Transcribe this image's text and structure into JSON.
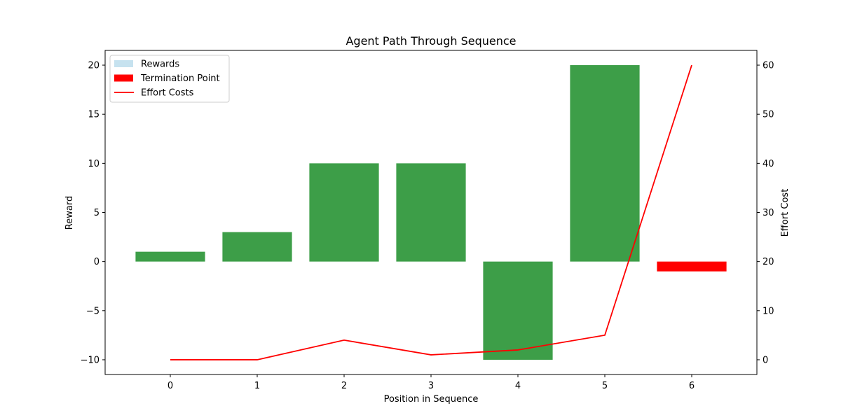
{
  "chart_data": {
    "type": "bar",
    "title": "Agent Path Through Sequence",
    "xlabel": "Position in Sequence",
    "ylabel": "Reward",
    "y2label": "Effort Cost",
    "x": [
      0,
      1,
      2,
      3,
      4,
      5,
      6
    ],
    "rewards": [
      1,
      3,
      10,
      10,
      -10,
      20,
      -1
    ],
    "bar_colors": [
      "#3d9e48",
      "#3d9e48",
      "#3d9e48",
      "#3d9e48",
      "#3d9e48",
      "#3d9e48",
      "#ff0000"
    ],
    "effort_costs": [
      0,
      0,
      4,
      1,
      2,
      5,
      60
    ],
    "xlim": [
      -0.75,
      6.75
    ],
    "ylim": [
      -11.5,
      21.5
    ],
    "y2lim": [
      -3,
      63
    ],
    "yticks": [
      -10,
      -5,
      0,
      5,
      10,
      15,
      20
    ],
    "y2ticks": [
      0,
      10,
      20,
      30,
      40,
      50,
      60
    ],
    "xticks": [
      0,
      1,
      2,
      3,
      4,
      5,
      6
    ],
    "ylabel_color": "#0000ff",
    "y2label_color": "#ff0000",
    "line_color": "#ff0000",
    "legend": {
      "placement": "top-left",
      "items": [
        {
          "label": "Rewards",
          "color": "#c6e2ef",
          "kind": "patch"
        },
        {
          "label": "Termination Point",
          "color": "#ff0000",
          "kind": "patch"
        },
        {
          "label": "Effort Costs",
          "color": "#ff0000",
          "kind": "line"
        }
      ]
    }
  }
}
